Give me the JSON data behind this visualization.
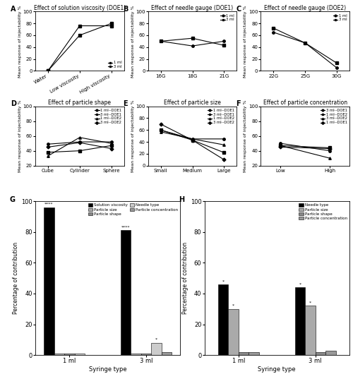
{
  "A": {
    "title": "Effect of solution viscosity (DOE1)",
    "ylabel": "Mean response of injectability %",
    "xticks": [
      "Water",
      "Low viscosity",
      "High viscosity"
    ],
    "series_order": [
      "1 ml",
      "3 ml"
    ],
    "series": {
      "1 ml": [
        0,
        60,
        80
      ],
      "3 ml": [
        0,
        76,
        76
      ]
    },
    "ylim": [
      0,
      100
    ],
    "yticks": [
      0,
      20,
      40,
      60,
      80,
      100
    ],
    "markers": {
      "1 ml": "s",
      "3 ml": "s"
    },
    "legend_loc": "lower right",
    "label": "A"
  },
  "B": {
    "title": "Effect of needle gauge (DOE1)",
    "ylabel": "Mean response of injectability %",
    "xticks": [
      "16G",
      "18G",
      "21G"
    ],
    "series_order": [
      "1 ml",
      "3 ml"
    ],
    "series": {
      "1 ml": [
        50,
        42,
        50
      ],
      "3 ml": [
        50,
        55,
        43
      ]
    },
    "ylim": [
      0,
      100
    ],
    "yticks": [
      0,
      20,
      40,
      60,
      80,
      100
    ],
    "markers": {
      "1 ml": "o",
      "3 ml": "s"
    },
    "legend_loc": "upper right",
    "label": "B"
  },
  "C": {
    "title": "Effect of needle gauge (DOE2)",
    "ylabel": "Mean response of injectability %",
    "xticks": [
      "22G",
      "25G",
      "30G"
    ],
    "series_order": [
      "1 ml",
      "3 ml"
    ],
    "series": {
      "1 ml": [
        65,
        47,
        5
      ],
      "3 ml": [
        72,
        47,
        13
      ]
    },
    "ylim": [
      0,
      100
    ],
    "yticks": [
      0,
      20,
      40,
      60,
      80,
      100
    ],
    "markers": {
      "1 ml": "o",
      "3 ml": "s"
    },
    "legend_loc": "upper right",
    "label": "C"
  },
  "D": {
    "title": "Effect of particle shape",
    "ylabel": "Mean response of injectability %",
    "xticks": [
      "Cube",
      "Cylinder",
      "Sphere"
    ],
    "series_order": [
      "1 ml--DOE1",
      "3 ml--DOE1",
      "1 ml--DOE2",
      "3 ml--DOE2"
    ],
    "series": {
      "1 ml--DOE1": [
        49,
        52,
        52
      ],
      "3 ml--DOE1": [
        38,
        40,
        47
      ],
      "1 ml--DOE2": [
        33,
        58,
        50
      ],
      "3 ml--DOE2": [
        45,
        51,
        43
      ]
    },
    "ylim": [
      20,
      100
    ],
    "yticks": [
      20,
      40,
      60,
      80,
      100
    ],
    "markers": {
      "1 ml--DOE1": "o",
      "3 ml--DOE1": "s",
      "1 ml--DOE2": "^",
      "3 ml--DOE2": "D"
    },
    "legend_loc": "upper right",
    "label": "D"
  },
  "E": {
    "title": "Effect of particle size",
    "ylabel": "Mean response of injectability %",
    "xticks": [
      "Small",
      "Medium",
      "Large"
    ],
    "series_order": [
      "1 ml--DOE1",
      "3 ml--DOE1",
      "1 ml--DOE2",
      "3 ml--DOE2"
    ],
    "series": {
      "1 ml--DOE1": [
        60,
        45,
        45
      ],
      "3 ml--DOE1": [
        60,
        43,
        22
      ],
      "1 ml--DOE2": [
        57,
        45,
        35
      ],
      "3 ml--DOE2": [
        70,
        43,
        10
      ]
    },
    "ylim": [
      0,
      100
    ],
    "yticks": [
      0,
      20,
      40,
      60,
      80,
      100
    ],
    "markers": {
      "1 ml--DOE1": "o",
      "3 ml--DOE1": "s",
      "1 ml--DOE2": "^",
      "3 ml--DOE2": "D"
    },
    "legend_loc": "upper right",
    "label": "E"
  },
  "F": {
    "title": "Effect of particle concentration",
    "ylabel": "Mean response of injectability %",
    "xticks": [
      "Low",
      "High"
    ],
    "series_order": [
      "3 ml--DOE1",
      "1 ml--DOE2",
      "3 ml--DOE2",
      "1 ml--DOE1"
    ],
    "series": {
      "3 ml--DOE1": [
        50,
        40
      ],
      "1 ml--DOE2": [
        47,
        44
      ],
      "3 ml--DOE2": [
        47,
        30
      ],
      "1 ml--DOE1": [
        45,
        43
      ]
    },
    "ylim": [
      20,
      100
    ],
    "yticks": [
      20,
      40,
      60,
      80,
      100
    ],
    "markers": {
      "3 ml--DOE1": "o",
      "1 ml--DOE2": "s",
      "3 ml--DOE2": "^",
      "1 ml--DOE1": "D"
    },
    "legend_loc": "upper right",
    "label": "F"
  },
  "G": {
    "label": "G",
    "xlabel": "Syringe type",
    "ylabel": "Percentage of contribution",
    "groups": [
      "1 ml",
      "3 ml"
    ],
    "categories": [
      "Solution viscosity",
      "Particle size",
      "Particle shape",
      "Needle type",
      "Particle concentration"
    ],
    "colors": [
      "#000000",
      "#aaaaaa",
      "#888888",
      "#cccccc",
      "#999999"
    ],
    "values": {
      "1 ml": [
        96,
        1,
        1,
        1,
        0
      ],
      "3 ml": [
        81,
        1,
        1,
        8,
        2
      ]
    },
    "annotations": {
      "1 ml": {
        "Solution viscosity": "****"
      },
      "3 ml": {
        "Solution viscosity": "****",
        "Needle type": "*"
      }
    },
    "ylim": [
      0,
      100
    ],
    "yticks": [
      0,
      20,
      40,
      60,
      80,
      100
    ],
    "legend_ncol": 2
  },
  "H": {
    "label": "H",
    "xlabel": "Syringe type",
    "ylabel": "Percentage of contribution",
    "groups": [
      "1 ml",
      "3 ml"
    ],
    "categories": [
      "Needle type",
      "Particle size",
      "Particle shape",
      "Particle concentration"
    ],
    "colors": [
      "#000000",
      "#aaaaaa",
      "#888888",
      "#999999"
    ],
    "values": {
      "1 ml": [
        46,
        30,
        2,
        2
      ],
      "3 ml": [
        44,
        32,
        2,
        3
      ]
    },
    "annotations": {
      "1 ml": {
        "Needle type": "*",
        "Particle size": "*"
      },
      "3 ml": {
        "Needle type": "*",
        "Particle size": "*"
      }
    },
    "ylim": [
      0,
      100
    ],
    "yticks": [
      0,
      20,
      40,
      60,
      80,
      100
    ],
    "legend_ncol": 1
  }
}
